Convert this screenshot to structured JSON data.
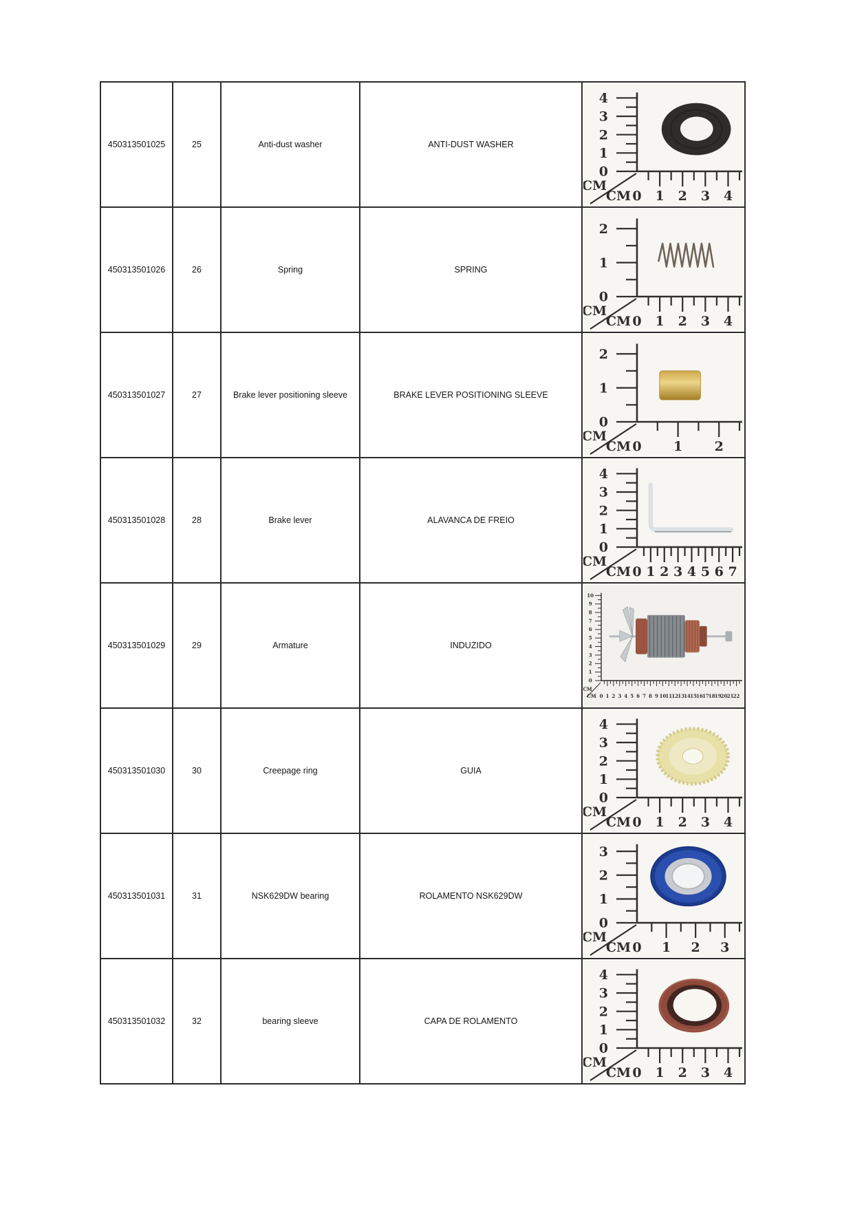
{
  "document": {
    "type": "parts-list-table",
    "figure_style": {
      "ink": "#2f2e2b",
      "photo_bg": "#f7f6f2"
    },
    "columns": [
      "part_number",
      "item_number",
      "description_en",
      "description_pt",
      "photo"
    ],
    "rows": [
      {
        "part_number": "450313501025",
        "item_number": "25",
        "description_en": "Anti-dust washer",
        "description_pt": "ANTI-DUST WASHER",
        "figure": {
          "part": "anti-dust-washer",
          "ruler_unit": "CM",
          "v_labels": [
            "4",
            "3",
            "2",
            "1",
            "0"
          ],
          "h_labels": [
            "0",
            "1",
            "2",
            "3",
            "4"
          ],
          "v_max": 4,
          "h_max": 4,
          "colors": {
            "body": "#2e2d2b",
            "hole": "#f5f4f0",
            "step": "#1d1c1a"
          }
        }
      },
      {
        "part_number": "450313501026",
        "item_number": "26",
        "description_en": "Spring",
        "description_pt": "SPRING",
        "figure": {
          "part": "spring",
          "ruler_unit": "CM",
          "v_labels": [
            "2",
            "1",
            "0"
          ],
          "h_labels": [
            "0",
            "1",
            "2",
            "3",
            "4"
          ],
          "v_max": 2,
          "h_max": 4,
          "colors": {
            "body": "#6f6457"
          }
        }
      },
      {
        "part_number": "450313501027",
        "item_number": "27",
        "description_en": "Brake lever positioning sleeve",
        "description_pt": "BRAKE LEVER POSITIONING SLEEVE",
        "figure": {
          "part": "brass-sleeve",
          "ruler_unit": "CM",
          "v_labels": [
            "2",
            "1",
            "0"
          ],
          "h_labels": [
            "0",
            "1",
            "2"
          ],
          "v_max": 2,
          "h_max": 2,
          "colors": {
            "light": "#ecd489",
            "mid": "#cfa94a",
            "dark": "#a67f28"
          }
        }
      },
      {
        "part_number": "450313501028",
        "item_number": "28",
        "description_en": "Brake lever",
        "description_pt": "ALAVANCA DE FREIO",
        "figure": {
          "part": "brake-lever",
          "ruler_unit": "CM",
          "v_labels": [
            "4",
            "3",
            "2",
            "1",
            "0"
          ],
          "h_labels": [
            "0",
            "1",
            "2",
            "3",
            "4",
            "5",
            "6",
            "7"
          ],
          "v_max": 4,
          "h_max": 7,
          "colors": {
            "body": "#dce1e4",
            "edge": "#8e969b"
          }
        }
      },
      {
        "part_number": "450313501029",
        "item_number": "29",
        "description_en": "Armature",
        "description_pt": "INDUZIDO",
        "figure": {
          "part": "armature",
          "ruler_unit": "CM",
          "v_labels": [
            "10",
            "9",
            "8",
            "7",
            "6",
            "5",
            "4",
            "3",
            "2",
            "1",
            "0"
          ],
          "h_labels": [
            "0",
            "1",
            "2",
            "3",
            "4",
            "5",
            "6",
            "7",
            "8",
            "9",
            "10",
            "11",
            "12",
            "13",
            "14",
            "15",
            "16",
            "17",
            "18",
            "19",
            "20",
            "21",
            "22"
          ],
          "v_max": 10,
          "h_max": 22,
          "photo_bg": "#f2f1ed",
          "colors": {
            "shaft": "#b6babd",
            "core": "#878c90",
            "core_dark": "#565a5e",
            "copper": "#b06a52",
            "copper_dark": "#8a4936",
            "winding": "#9a5440",
            "fan": "#c6cbce",
            "bearing": "#aab0b3"
          }
        }
      },
      {
        "part_number": "450313501030",
        "item_number": "30",
        "description_en": "Creepage ring",
        "description_pt": "GUIA",
        "figure": {
          "part": "creepage-ring",
          "ruler_unit": "CM",
          "v_labels": [
            "4",
            "3",
            "2",
            "1",
            "0"
          ],
          "h_labels": [
            "0",
            "1",
            "2",
            "3",
            "4"
          ],
          "v_max": 4,
          "h_max": 4,
          "colors": {
            "body": "#e7e1a8",
            "inner": "#eee9c4",
            "hole": "#f9f8ef",
            "teeth": "#d2ca8c"
          }
        }
      },
      {
        "part_number": "450313501031",
        "item_number": "31",
        "description_en": "NSK629DW bearing",
        "description_pt": "ROLAMENTO NSK629DW",
        "figure": {
          "part": "bearing",
          "ruler_unit": "CM",
          "v_labels": [
            "3",
            "2",
            "1",
            "0"
          ],
          "h_labels": [
            "0",
            "1",
            "2",
            "3"
          ],
          "v_max": 3,
          "h_max": 3,
          "colors": {
            "outer": "#2b4fae",
            "outer_dark": "#1d3c8f",
            "mid": "#c8ccd1",
            "hole": "#f3f4f5",
            "ring_edge": "#16307a"
          }
        }
      },
      {
        "part_number": "450313501032",
        "item_number": "32",
        "description_en": "bearing sleeve",
        "description_pt": "CAPA DE ROLAMENTO",
        "figure": {
          "part": "bearing-sleeve",
          "ruler_unit": "CM",
          "v_labels": [
            "4",
            "3",
            "2",
            "1",
            "0"
          ],
          "h_labels": [
            "0",
            "1",
            "2",
            "3",
            "4"
          ],
          "v_max": 4,
          "h_max": 4,
          "colors": {
            "outer": "#8f4a3c",
            "dark": "#42261f",
            "hole": "#f8f7f2",
            "rim": "#a05a49"
          }
        }
      }
    ]
  }
}
